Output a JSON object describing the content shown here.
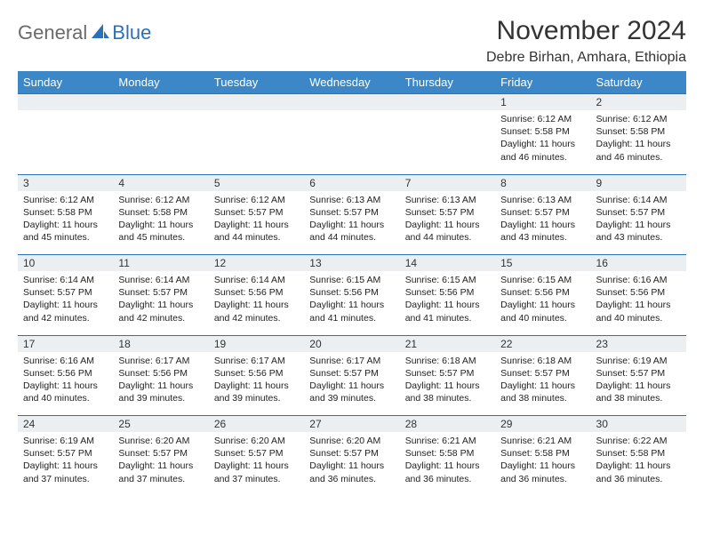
{
  "logo": {
    "text_general": "General",
    "text_blue": "Blue"
  },
  "header": {
    "month_title": "November 2024",
    "location": "Debre Birhan, Amhara, Ethiopia"
  },
  "style": {
    "header_bg": "#3b87c8",
    "header_text": "#ffffff",
    "daynum_bg": "#eceff1",
    "border_color": "#2a71b8",
    "page_bg": "#ffffff",
    "logo_gray": "#6a6a6a",
    "logo_blue": "#2a71b8",
    "title_fontsize": 30,
    "location_fontsize": 16,
    "header_fontsize": 13,
    "daynum_fontsize": 12,
    "detail_fontsize": 10.5
  },
  "weekdays": [
    "Sunday",
    "Monday",
    "Tuesday",
    "Wednesday",
    "Thursday",
    "Friday",
    "Saturday"
  ],
  "weeks": [
    [
      null,
      null,
      null,
      null,
      null,
      {
        "n": "1",
        "sunrise": "Sunrise: 6:12 AM",
        "sunset": "Sunset: 5:58 PM",
        "d1": "Daylight: 11 hours",
        "d2": "and 46 minutes."
      },
      {
        "n": "2",
        "sunrise": "Sunrise: 6:12 AM",
        "sunset": "Sunset: 5:58 PM",
        "d1": "Daylight: 11 hours",
        "d2": "and 46 minutes."
      }
    ],
    [
      {
        "n": "3",
        "sunrise": "Sunrise: 6:12 AM",
        "sunset": "Sunset: 5:58 PM",
        "d1": "Daylight: 11 hours",
        "d2": "and 45 minutes."
      },
      {
        "n": "4",
        "sunrise": "Sunrise: 6:12 AM",
        "sunset": "Sunset: 5:58 PM",
        "d1": "Daylight: 11 hours",
        "d2": "and 45 minutes."
      },
      {
        "n": "5",
        "sunrise": "Sunrise: 6:12 AM",
        "sunset": "Sunset: 5:57 PM",
        "d1": "Daylight: 11 hours",
        "d2": "and 44 minutes."
      },
      {
        "n": "6",
        "sunrise": "Sunrise: 6:13 AM",
        "sunset": "Sunset: 5:57 PM",
        "d1": "Daylight: 11 hours",
        "d2": "and 44 minutes."
      },
      {
        "n": "7",
        "sunrise": "Sunrise: 6:13 AM",
        "sunset": "Sunset: 5:57 PM",
        "d1": "Daylight: 11 hours",
        "d2": "and 44 minutes."
      },
      {
        "n": "8",
        "sunrise": "Sunrise: 6:13 AM",
        "sunset": "Sunset: 5:57 PM",
        "d1": "Daylight: 11 hours",
        "d2": "and 43 minutes."
      },
      {
        "n": "9",
        "sunrise": "Sunrise: 6:14 AM",
        "sunset": "Sunset: 5:57 PM",
        "d1": "Daylight: 11 hours",
        "d2": "and 43 minutes."
      }
    ],
    [
      {
        "n": "10",
        "sunrise": "Sunrise: 6:14 AM",
        "sunset": "Sunset: 5:57 PM",
        "d1": "Daylight: 11 hours",
        "d2": "and 42 minutes."
      },
      {
        "n": "11",
        "sunrise": "Sunrise: 6:14 AM",
        "sunset": "Sunset: 5:57 PM",
        "d1": "Daylight: 11 hours",
        "d2": "and 42 minutes."
      },
      {
        "n": "12",
        "sunrise": "Sunrise: 6:14 AM",
        "sunset": "Sunset: 5:56 PM",
        "d1": "Daylight: 11 hours",
        "d2": "and 42 minutes."
      },
      {
        "n": "13",
        "sunrise": "Sunrise: 6:15 AM",
        "sunset": "Sunset: 5:56 PM",
        "d1": "Daylight: 11 hours",
        "d2": "and 41 minutes."
      },
      {
        "n": "14",
        "sunrise": "Sunrise: 6:15 AM",
        "sunset": "Sunset: 5:56 PM",
        "d1": "Daylight: 11 hours",
        "d2": "and 41 minutes."
      },
      {
        "n": "15",
        "sunrise": "Sunrise: 6:15 AM",
        "sunset": "Sunset: 5:56 PM",
        "d1": "Daylight: 11 hours",
        "d2": "and 40 minutes."
      },
      {
        "n": "16",
        "sunrise": "Sunrise: 6:16 AM",
        "sunset": "Sunset: 5:56 PM",
        "d1": "Daylight: 11 hours",
        "d2": "and 40 minutes."
      }
    ],
    [
      {
        "n": "17",
        "sunrise": "Sunrise: 6:16 AM",
        "sunset": "Sunset: 5:56 PM",
        "d1": "Daylight: 11 hours",
        "d2": "and 40 minutes."
      },
      {
        "n": "18",
        "sunrise": "Sunrise: 6:17 AM",
        "sunset": "Sunset: 5:56 PM",
        "d1": "Daylight: 11 hours",
        "d2": "and 39 minutes."
      },
      {
        "n": "19",
        "sunrise": "Sunrise: 6:17 AM",
        "sunset": "Sunset: 5:56 PM",
        "d1": "Daylight: 11 hours",
        "d2": "and 39 minutes."
      },
      {
        "n": "20",
        "sunrise": "Sunrise: 6:17 AM",
        "sunset": "Sunset: 5:57 PM",
        "d1": "Daylight: 11 hours",
        "d2": "and 39 minutes."
      },
      {
        "n": "21",
        "sunrise": "Sunrise: 6:18 AM",
        "sunset": "Sunset: 5:57 PM",
        "d1": "Daylight: 11 hours",
        "d2": "and 38 minutes."
      },
      {
        "n": "22",
        "sunrise": "Sunrise: 6:18 AM",
        "sunset": "Sunset: 5:57 PM",
        "d1": "Daylight: 11 hours",
        "d2": "and 38 minutes."
      },
      {
        "n": "23",
        "sunrise": "Sunrise: 6:19 AM",
        "sunset": "Sunset: 5:57 PM",
        "d1": "Daylight: 11 hours",
        "d2": "and 38 minutes."
      }
    ],
    [
      {
        "n": "24",
        "sunrise": "Sunrise: 6:19 AM",
        "sunset": "Sunset: 5:57 PM",
        "d1": "Daylight: 11 hours",
        "d2": "and 37 minutes."
      },
      {
        "n": "25",
        "sunrise": "Sunrise: 6:20 AM",
        "sunset": "Sunset: 5:57 PM",
        "d1": "Daylight: 11 hours",
        "d2": "and 37 minutes."
      },
      {
        "n": "26",
        "sunrise": "Sunrise: 6:20 AM",
        "sunset": "Sunset: 5:57 PM",
        "d1": "Daylight: 11 hours",
        "d2": "and 37 minutes."
      },
      {
        "n": "27",
        "sunrise": "Sunrise: 6:20 AM",
        "sunset": "Sunset: 5:57 PM",
        "d1": "Daylight: 11 hours",
        "d2": "and 36 minutes."
      },
      {
        "n": "28",
        "sunrise": "Sunrise: 6:21 AM",
        "sunset": "Sunset: 5:58 PM",
        "d1": "Daylight: 11 hours",
        "d2": "and 36 minutes."
      },
      {
        "n": "29",
        "sunrise": "Sunrise: 6:21 AM",
        "sunset": "Sunset: 5:58 PM",
        "d1": "Daylight: 11 hours",
        "d2": "and 36 minutes."
      },
      {
        "n": "30",
        "sunrise": "Sunrise: 6:22 AM",
        "sunset": "Sunset: 5:58 PM",
        "d1": "Daylight: 11 hours",
        "d2": "and 36 minutes."
      }
    ]
  ]
}
